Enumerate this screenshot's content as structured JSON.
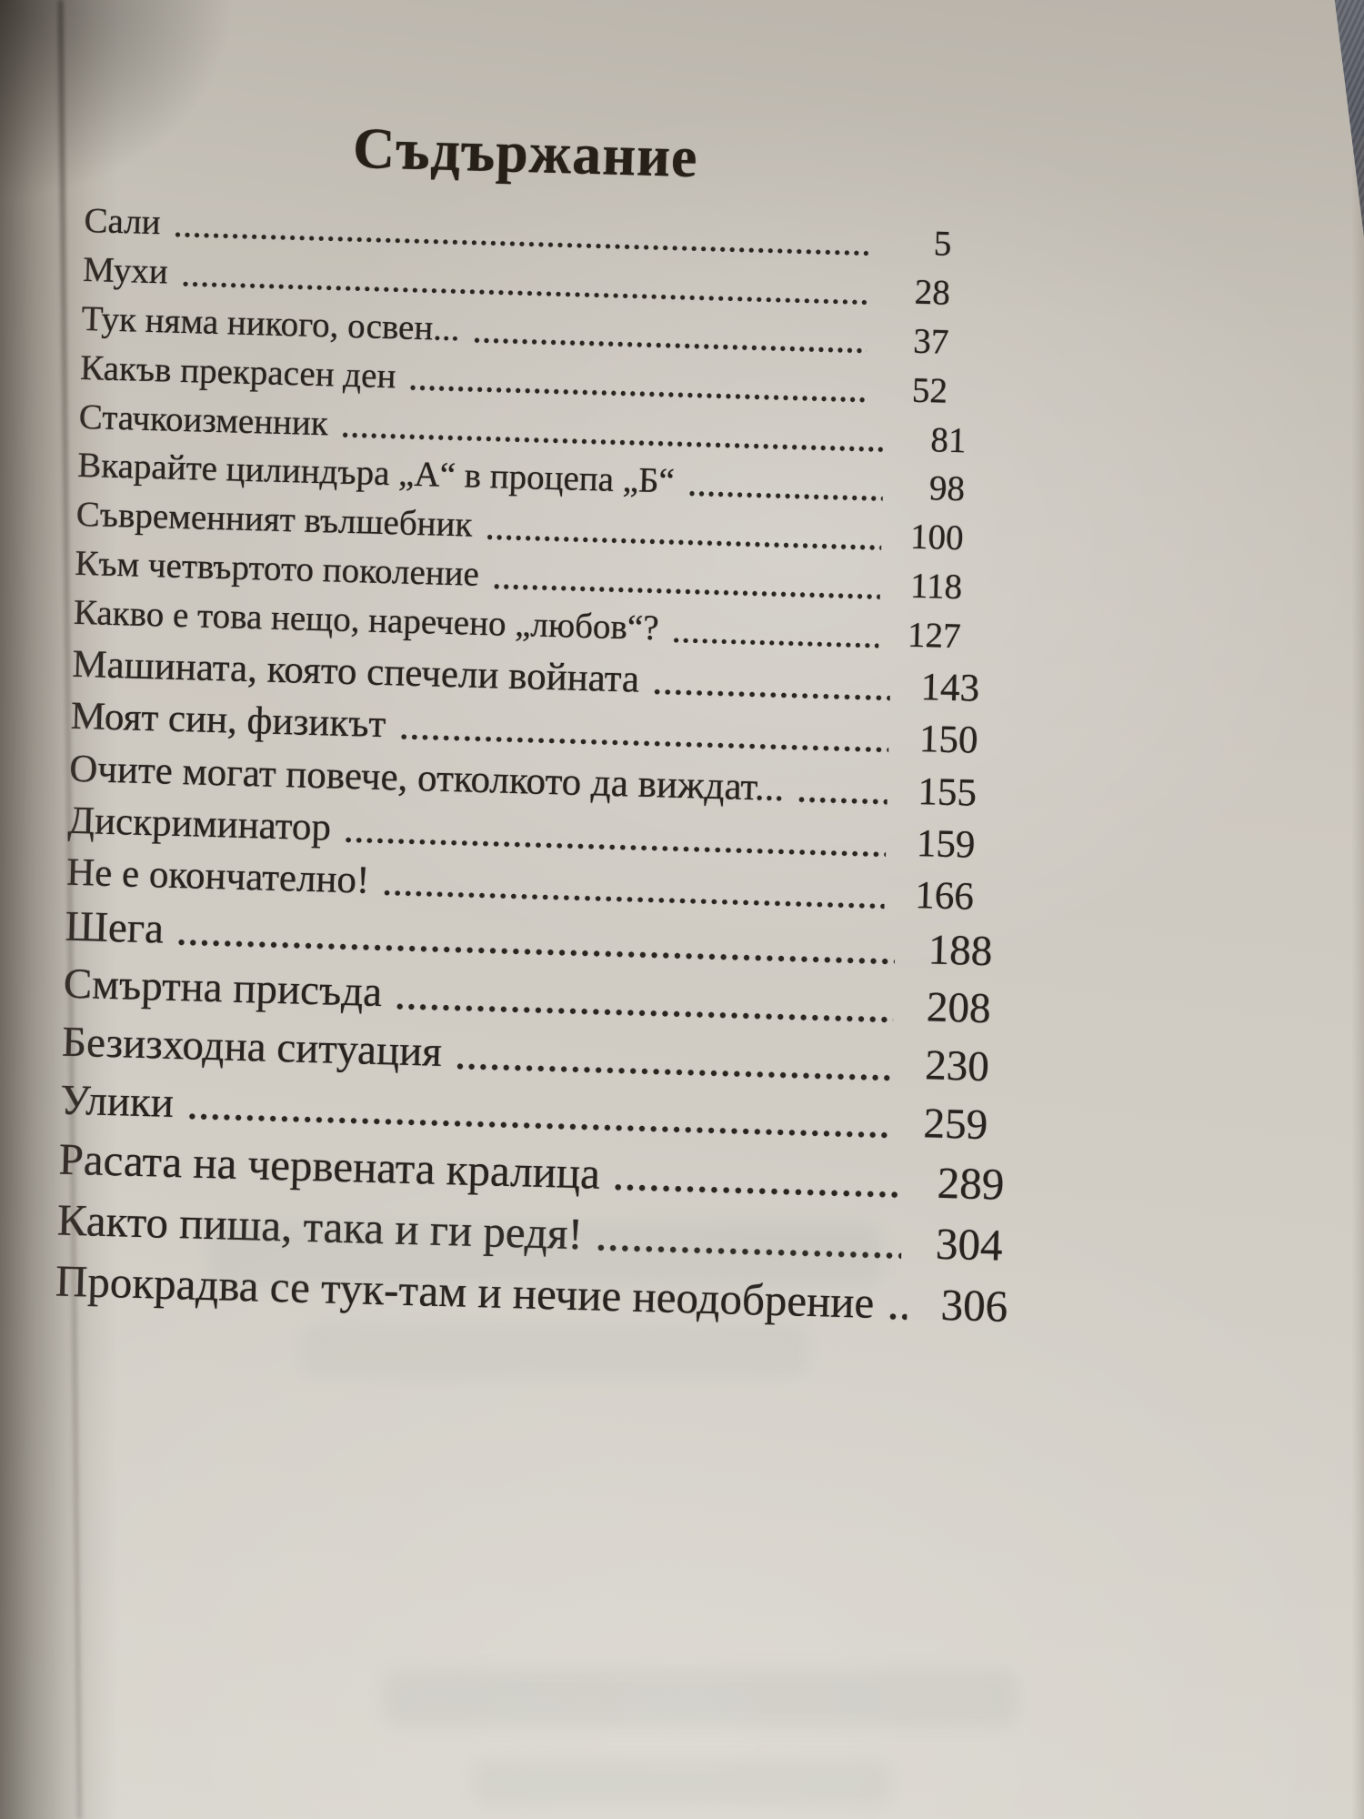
{
  "toc": {
    "title": "Съдържание",
    "entries": [
      {
        "title": "Сали",
        "page": "5"
      },
      {
        "title": "Мухи",
        "page": "28"
      },
      {
        "title": "Тук няма никого, освен...",
        "page": "37"
      },
      {
        "title": "Какъв прекрасен ден",
        "page": "52"
      },
      {
        "title": "Стачкоизменник",
        "page": "81"
      },
      {
        "title": "Вкарайте цилиндъра „А“ в процепа „Б“",
        "page": "98"
      },
      {
        "title": "Съвременният вълшебник",
        "page": "100"
      },
      {
        "title": "Към четвъртото поколение",
        "page": "118"
      },
      {
        "title": "Какво е това нещо, наречено „любов“?",
        "page": "127"
      },
      {
        "title": "Машината, която спечели войната",
        "page": "143"
      },
      {
        "title": "Моят син, физикът",
        "page": "150"
      },
      {
        "title": "Очите могат повече, отколкото да виждат...",
        "page": "155"
      },
      {
        "title": "Дискриминатор",
        "page": "159"
      },
      {
        "title": "Не е окончателно!",
        "page": "166"
      },
      {
        "title": "Шега",
        "page": "188"
      },
      {
        "title": "Смъртна присъда",
        "page": "208"
      },
      {
        "title": "Безизходна ситуация",
        "page": "230"
      },
      {
        "title": "Улики",
        "page": "259"
      },
      {
        "title": "Расата на червената кралица",
        "page": "289"
      },
      {
        "title": "Както пиша, така и ги редя!",
        "page": "304"
      },
      {
        "title": "Прокрадва се тук-там и нечие неодобрение",
        "page": "306"
      }
    ]
  }
}
